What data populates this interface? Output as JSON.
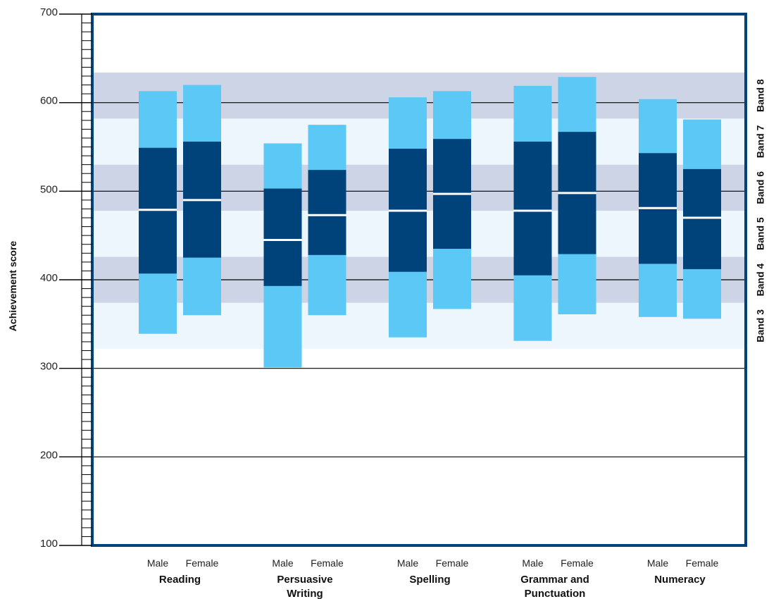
{
  "chart_data": {
    "type": "bar",
    "subtype": "percentile-range",
    "title": "",
    "ylabel": "Achievement score",
    "ylim": [
      100,
      700
    ],
    "y_ticks": [
      100,
      200,
      300,
      400,
      500,
      600,
      700
    ],
    "gridlines": [
      200,
      300,
      400,
      500,
      600
    ],
    "bands": [
      {
        "label": "Band 3",
        "from": 322,
        "to": 374
      },
      {
        "label": "Band 4",
        "from": 374,
        "to": 426
      },
      {
        "label": "Band 5",
        "from": 426,
        "to": 478
      },
      {
        "label": "Band 6",
        "from": 478,
        "to": 530
      },
      {
        "label": "Band 7",
        "from": 530,
        "to": 582
      },
      {
        "label": "Band 8",
        "from": 582,
        "to": 634
      }
    ],
    "domains": [
      {
        "name": "Reading",
        "name_lines": [
          "Reading"
        ],
        "groups": [
          {
            "label": "Male",
            "p5": 339,
            "p20": 407,
            "mean": 479,
            "p80": 549,
            "p95": 613
          },
          {
            "label": "Female",
            "p5": 360,
            "p20": 425,
            "mean": 490,
            "p80": 556,
            "p95": 620
          }
        ]
      },
      {
        "name": "Persuasive Writing",
        "name_lines": [
          "Persuasive",
          "Writing"
        ],
        "groups": [
          {
            "label": "Male",
            "p5": 301,
            "p20": 393,
            "mean": 445,
            "p80": 503,
            "p95": 554
          },
          {
            "label": "Female",
            "p5": 360,
            "p20": 428,
            "mean": 473,
            "p80": 524,
            "p95": 575
          }
        ]
      },
      {
        "name": "Spelling",
        "name_lines": [
          "Spelling"
        ],
        "groups": [
          {
            "label": "Male",
            "p5": 335,
            "p20": 409,
            "mean": 478,
            "p80": 548,
            "p95": 606
          },
          {
            "label": "Female",
            "p5": 367,
            "p20": 435,
            "mean": 497,
            "p80": 559,
            "p95": 613
          }
        ]
      },
      {
        "name": "Grammar and Punctuation",
        "name_lines": [
          "Grammar and",
          "Punctuation"
        ],
        "groups": [
          {
            "label": "Male",
            "p5": 331,
            "p20": 405,
            "mean": 478,
            "p80": 556,
            "p95": 619
          },
          {
            "label": "Female",
            "p5": 361,
            "p20": 429,
            "mean": 498,
            "p80": 567,
            "p95": 629
          }
        ]
      },
      {
        "name": "Numeracy",
        "name_lines": [
          "Numeracy"
        ],
        "groups": [
          {
            "label": "Male",
            "p5": 358,
            "p20": 418,
            "mean": 481,
            "p80": 543,
            "p95": 604
          },
          {
            "label": "Female",
            "p5": 356,
            "p20": 412,
            "mean": 470,
            "p80": 525,
            "p95": 581
          }
        ]
      }
    ]
  },
  "colors": {
    "outer_range": "#5bc8f5",
    "inner_range": "#00427a",
    "mean_line": "#ffffff",
    "frame": "#00427a",
    "band_dark": "#ccd4e6",
    "band_light": "#eef6fd",
    "gridline": "#000000"
  }
}
